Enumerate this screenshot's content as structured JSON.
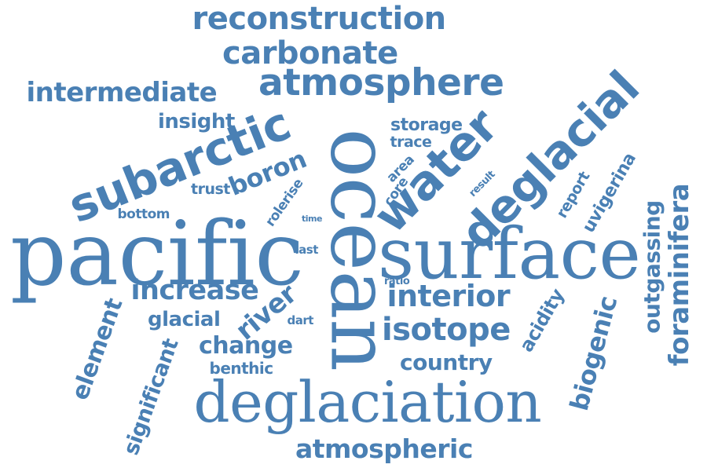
{
  "word_color": "#4a80b4",
  "background": "#ffffff",
  "words": [
    {
      "key": "pacific",
      "text": "pacific"
    },
    {
      "key": "ocean",
      "text": "ocean"
    },
    {
      "key": "surface",
      "text": "surface"
    },
    {
      "key": "deglaciation",
      "text": "deglaciation"
    },
    {
      "key": "subarctic",
      "text": "subarctic"
    },
    {
      "key": "water",
      "text": "water"
    },
    {
      "key": "deglacial",
      "text": "deglacial"
    },
    {
      "key": "atmosphere",
      "text": "atmosphere"
    },
    {
      "key": "reconstruction",
      "text": "reconstruction"
    },
    {
      "key": "carbonate",
      "text": "carbonate"
    },
    {
      "key": "intermediate",
      "text": "intermediate"
    },
    {
      "key": "insight",
      "text": "insight"
    },
    {
      "key": "boron",
      "text": "boron"
    },
    {
      "key": "trust",
      "text": "trust"
    },
    {
      "key": "bottom",
      "text": "bottom"
    },
    {
      "key": "rolerise",
      "text": "rolerise"
    },
    {
      "key": "time",
      "text": "time"
    },
    {
      "key": "last",
      "text": "last"
    },
    {
      "key": "storage",
      "text": "storage"
    },
    {
      "key": "trace",
      "text": "trace"
    },
    {
      "key": "area",
      "text": "area"
    },
    {
      "key": "core",
      "text": "core"
    },
    {
      "key": "result",
      "text": "result"
    },
    {
      "key": "report",
      "text": "report"
    },
    {
      "key": "uvigerina",
      "text": "uvigerina"
    },
    {
      "key": "foraminifera",
      "text": "foraminifera"
    },
    {
      "key": "outgassing",
      "text": "outgassing"
    },
    {
      "key": "biogenic",
      "text": "biogenic"
    },
    {
      "key": "acidity",
      "text": "acidity"
    },
    {
      "key": "interior",
      "text": "interior"
    },
    {
      "key": "ratio",
      "text": "ratio"
    },
    {
      "key": "isotope",
      "text": "isotope"
    },
    {
      "key": "country",
      "text": "country"
    },
    {
      "key": "increase",
      "text": "increase"
    },
    {
      "key": "glacial",
      "text": "glacial"
    },
    {
      "key": "river",
      "text": "river"
    },
    {
      "key": "dart",
      "text": "dart"
    },
    {
      "key": "change",
      "text": "change"
    },
    {
      "key": "benthic",
      "text": "benthic"
    },
    {
      "key": "element",
      "text": "element"
    },
    {
      "key": "significant",
      "text": "significant"
    },
    {
      "key": "atmospheric",
      "text": "atmospheric"
    }
  ]
}
